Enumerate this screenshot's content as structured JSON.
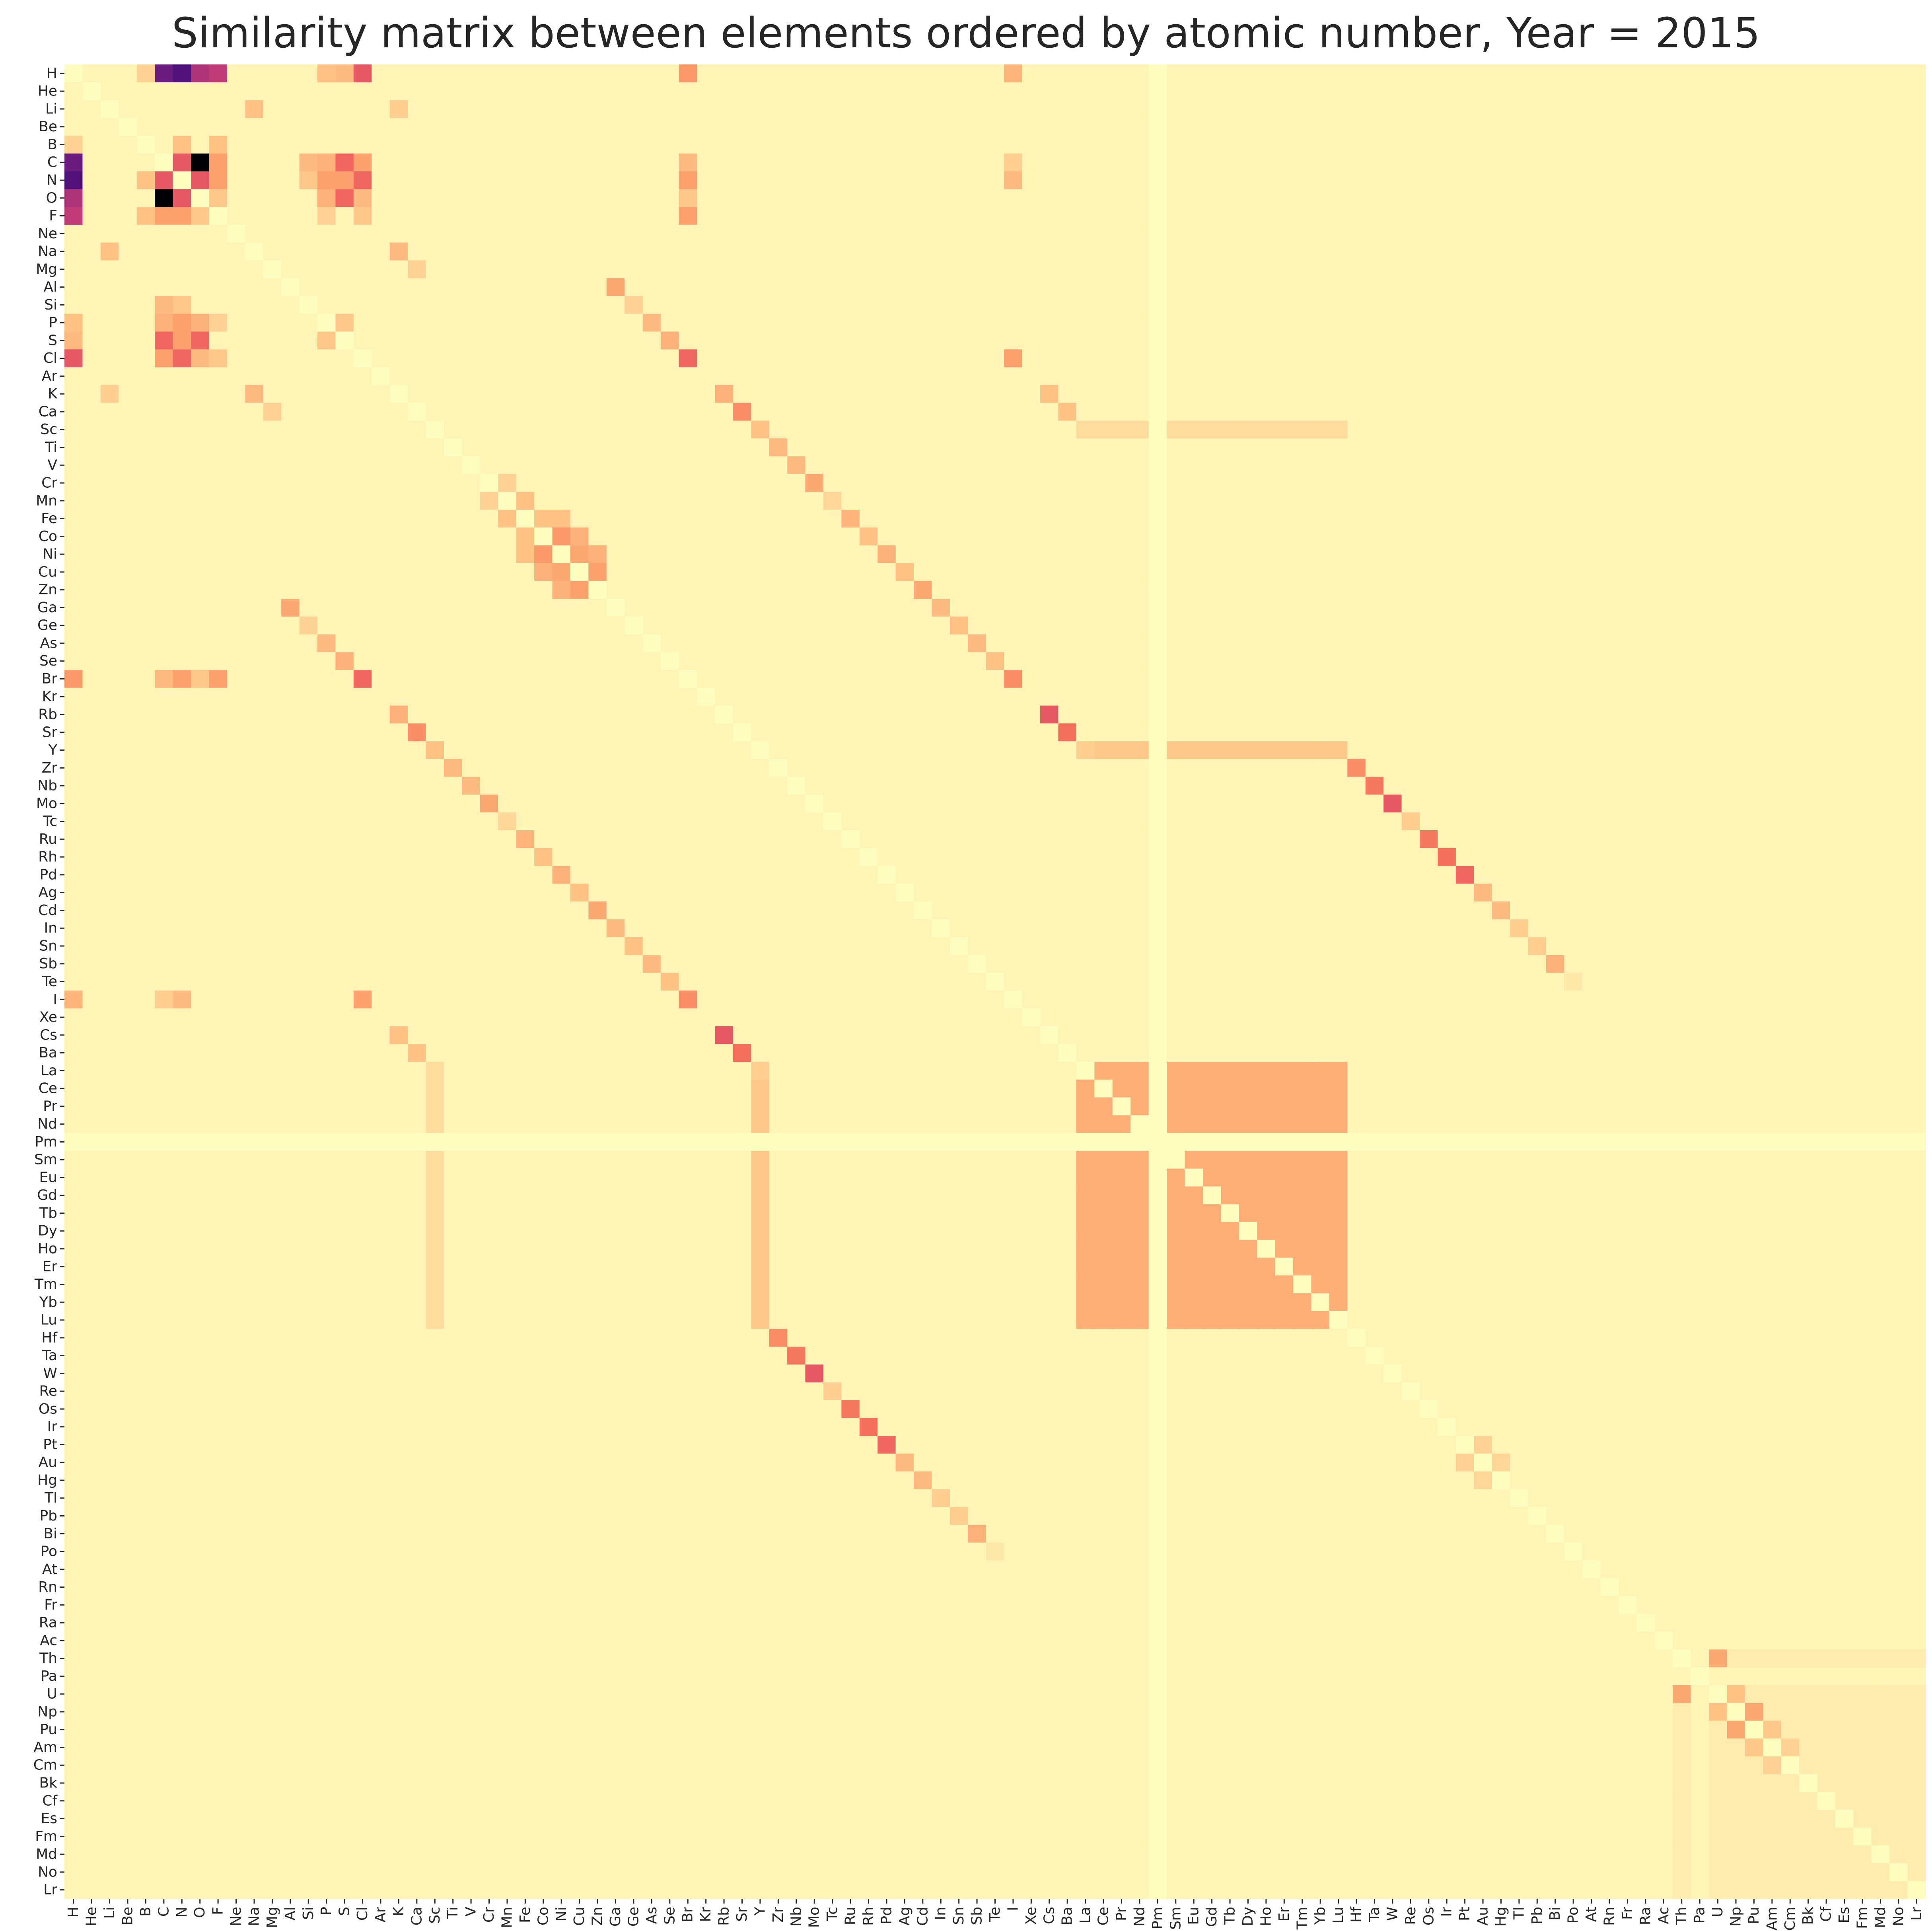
{
  "chart_data": {
    "type": "heatmap",
    "title": "Similarity matrix between elements ordered by atomic number, Year = 2015",
    "xlabel": "",
    "ylabel": "",
    "colormap": "magma_r",
    "colorbar": false,
    "labels": [
      "H",
      "He",
      "Li",
      "Be",
      "B",
      "C",
      "N",
      "O",
      "F",
      "Ne",
      "Na",
      "Mg",
      "Al",
      "Si",
      "P",
      "S",
      "Cl",
      "Ar",
      "K",
      "Ca",
      "Sc",
      "Ti",
      "V",
      "Cr",
      "Mn",
      "Fe",
      "Co",
      "Ni",
      "Cu",
      "Zn",
      "Ga",
      "Ge",
      "As",
      "Se",
      "Br",
      "Kr",
      "Rb",
      "Sr",
      "Y",
      "Zr",
      "Nb",
      "Mo",
      "Tc",
      "Ru",
      "Rh",
      "Pd",
      "Ag",
      "Cd",
      "In",
      "Sn",
      "Sb",
      "Te",
      "I",
      "Xe",
      "Cs",
      "Ba",
      "La",
      "Ce",
      "Pr",
      "Nd",
      "Pm",
      "Sm",
      "Eu",
      "Gd",
      "Tb",
      "Dy",
      "Ho",
      "Er",
      "Tm",
      "Yb",
      "Lu",
      "Hf",
      "Ta",
      "W",
      "Re",
      "Os",
      "Ir",
      "Pt",
      "Au",
      "Hg",
      "Tl",
      "Pb",
      "Bi",
      "Po",
      "At",
      "Rn",
      "Fr",
      "Ra",
      "Ac",
      "Th",
      "Pa",
      "U",
      "Np",
      "Pu",
      "Am",
      "Cm",
      "Bk",
      "Cf",
      "Es",
      "Fm",
      "Md",
      "No",
      "Lr"
    ],
    "default_value": 0.04,
    "blank_value": 0.0,
    "value_range": [
      0,
      1
    ],
    "symmetric": true,
    "cells": [
      [
        "H",
        "C",
        0.85
      ],
      [
        "H",
        "N",
        0.9
      ],
      [
        "H",
        "O",
        0.7
      ],
      [
        "H",
        "F",
        0.65
      ],
      [
        "H",
        "Cl",
        0.5
      ],
      [
        "H",
        "Br",
        0.32
      ],
      [
        "H",
        "I",
        0.24
      ],
      [
        "H",
        "S",
        0.22
      ],
      [
        "H",
        "P",
        0.2
      ],
      [
        "H",
        "B",
        0.15
      ],
      [
        "C",
        "N",
        0.5
      ],
      [
        "C",
        "O",
        1.0
      ],
      [
        "C",
        "F",
        0.3
      ],
      [
        "C",
        "Cl",
        0.3
      ],
      [
        "C",
        "S",
        0.45
      ],
      [
        "C",
        "P",
        0.25
      ],
      [
        "C",
        "Si",
        0.22
      ],
      [
        "C",
        "Br",
        0.22
      ],
      [
        "C",
        "I",
        0.16
      ],
      [
        "N",
        "O",
        0.5
      ],
      [
        "N",
        "F",
        0.3
      ],
      [
        "N",
        "Cl",
        0.45
      ],
      [
        "N",
        "S",
        0.3
      ],
      [
        "N",
        "P",
        0.3
      ],
      [
        "N",
        "Si",
        0.18
      ],
      [
        "N",
        "Br",
        0.3
      ],
      [
        "N",
        "I",
        0.22
      ],
      [
        "N",
        "B",
        0.2
      ],
      [
        "O",
        "S",
        0.45
      ],
      [
        "O",
        "P",
        0.25
      ],
      [
        "O",
        "F",
        0.18
      ],
      [
        "O",
        "Cl",
        0.22
      ],
      [
        "O",
        "Br",
        0.18
      ],
      [
        "F",
        "Cl",
        0.18
      ],
      [
        "F",
        "B",
        0.2
      ],
      [
        "F",
        "Br",
        0.3
      ],
      [
        "F",
        "P",
        0.15
      ],
      [
        "Cl",
        "Br",
        0.45
      ],
      [
        "Cl",
        "I",
        0.3
      ],
      [
        "Br",
        "I",
        0.35
      ],
      [
        "S",
        "Se",
        0.25
      ],
      [
        "S",
        "P",
        0.18
      ],
      [
        "Li",
        "Na",
        0.2
      ],
      [
        "Li",
        "K",
        0.16
      ],
      [
        "Na",
        "K",
        0.22
      ],
      [
        "K",
        "Rb",
        0.25
      ],
      [
        "Rb",
        "Cs",
        0.5
      ],
      [
        "K",
        "Cs",
        0.2
      ],
      [
        "Mg",
        "Ca",
        0.15
      ],
      [
        "Ca",
        "Sr",
        0.35
      ],
      [
        "Sr",
        "Ba",
        0.42
      ],
      [
        "Ca",
        "Ba",
        0.2
      ],
      [
        "Al",
        "Ga",
        0.28
      ],
      [
        "Ga",
        "In",
        0.22
      ],
      [
        "Si",
        "Ge",
        0.15
      ],
      [
        "Ge",
        "Sn",
        0.2
      ],
      [
        "P",
        "As",
        0.22
      ],
      [
        "As",
        "Sb",
        0.22
      ],
      [
        "Sb",
        "Bi",
        0.25
      ],
      [
        "Se",
        "Te",
        0.2
      ],
      [
        "Sc",
        "Y",
        0.2
      ],
      [
        "Y",
        "La",
        0.16
      ],
      [
        "Ti",
        "Zr",
        0.22
      ],
      [
        "Zr",
        "Hf",
        0.35
      ],
      [
        "V",
        "Nb",
        0.22
      ],
      [
        "Nb",
        "Ta",
        0.4
      ],
      [
        "Cr",
        "Mo",
        0.28
      ],
      [
        "Mo",
        "W",
        0.5
      ],
      [
        "Mn",
        "Tc",
        0.14
      ],
      [
        "Tc",
        "Re",
        0.16
      ],
      [
        "Fe",
        "Ru",
        0.24
      ],
      [
        "Ru",
        "Os",
        0.4
      ],
      [
        "Co",
        "Rh",
        0.2
      ],
      [
        "Rh",
        "Ir",
        0.42
      ],
      [
        "Ni",
        "Pd",
        0.25
      ],
      [
        "Pd",
        "Pt",
        0.45
      ],
      [
        "Cu",
        "Ag",
        0.2
      ],
      [
        "Ag",
        "Au",
        0.22
      ],
      [
        "Zn",
        "Cd",
        0.28
      ],
      [
        "Cd",
        "Hg",
        0.22
      ],
      [
        "In",
        "Tl",
        0.16
      ],
      [
        "Sn",
        "Pb",
        0.16
      ],
      [
        "Te",
        "Po",
        0.08
      ],
      [
        "Fe",
        "Co",
        0.2
      ],
      [
        "Fe",
        "Ni",
        0.2
      ],
      [
        "Co",
        "Ni",
        0.32
      ],
      [
        "Ni",
        "Cu",
        0.28
      ],
      [
        "Cu",
        "Zn",
        0.3
      ],
      [
        "Co",
        "Cu",
        0.25
      ],
      [
        "Ni",
        "Zn",
        0.25
      ],
      [
        "Mn",
        "Fe",
        0.2
      ],
      [
        "Cr",
        "Mn",
        0.15
      ],
      [
        "Pt",
        "Au",
        0.15
      ],
      [
        "Au",
        "Hg",
        0.14
      ],
      [
        "Th",
        "U",
        0.28
      ],
      [
        "U",
        "Np",
        0.2
      ],
      [
        "Np",
        "Pu",
        0.28
      ],
      [
        "Pu",
        "Am",
        0.18
      ],
      [
        "Am",
        "Cm",
        0.15
      ]
    ],
    "blocks": [
      {
        "rows": [
          "La",
          "Ce",
          "Pr",
          "Nd",
          "Sm",
          "Eu",
          "Gd",
          "Tb",
          "Dy",
          "Ho",
          "Er",
          "Tm",
          "Yb",
          "Lu"
        ],
        "cols": [
          "La",
          "Ce",
          "Pr",
          "Nd",
          "Sm",
          "Eu",
          "Gd",
          "Tb",
          "Dy",
          "Ho",
          "Er",
          "Tm",
          "Yb",
          "Lu"
        ],
        "value": 0.26
      },
      {
        "rows": [
          "Y"
        ],
        "cols": [
          "La",
          "Ce",
          "Pr",
          "Nd",
          "Sm",
          "Eu",
          "Gd",
          "Tb",
          "Dy",
          "Ho",
          "Er",
          "Tm",
          "Yb",
          "Lu"
        ],
        "value": 0.18
      },
      {
        "rows": [
          "Sc"
        ],
        "cols": [
          "La",
          "Ce",
          "Pr",
          "Nd",
          "Sm",
          "Eu",
          "Gd",
          "Tb",
          "Dy",
          "Ho",
          "Er",
          "Tm",
          "Yb",
          "Lu"
        ],
        "value": 0.12
      },
      {
        "rows": [
          "Th",
          "U",
          "Np",
          "Pu",
          "Am",
          "Cm",
          "Bk",
          "Cf",
          "Es",
          "Fm",
          "Md",
          "No",
          "Lr"
        ],
        "cols": [
          "Th",
          "U",
          "Np",
          "Pu",
          "Am",
          "Cm",
          "Bk",
          "Cf",
          "Es",
          "Fm",
          "Md",
          "No",
          "Lr"
        ],
        "value": 0.07
      }
    ],
    "blank": [
      "Pm"
    ],
    "zero_diagonal": true,
    "grid": false,
    "legend": "none"
  }
}
